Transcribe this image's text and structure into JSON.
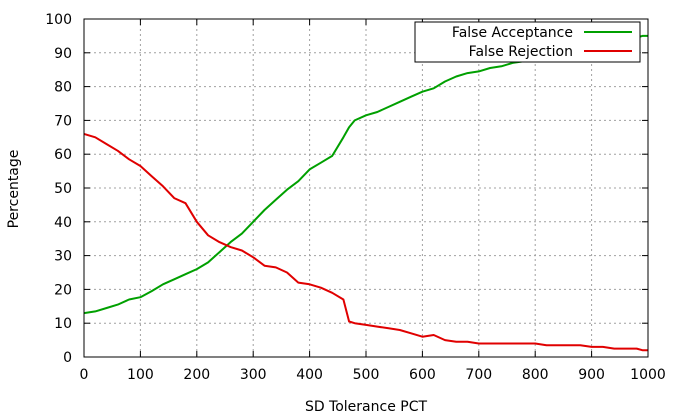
{
  "chart_data": {
    "type": "line",
    "title": "",
    "xlabel": "SD Tolerance PCT",
    "ylabel": "Percentage",
    "xlim": [
      0,
      1000
    ],
    "ylim": [
      0,
      100
    ],
    "x_ticks": [
      0,
      100,
      200,
      300,
      400,
      500,
      600,
      700,
      800,
      900,
      1000
    ],
    "y_ticks": [
      0,
      10,
      20,
      30,
      40,
      50,
      60,
      70,
      80,
      90,
      100
    ],
    "x_tick_labels": [
      "0",
      "100",
      "200",
      "300",
      "400",
      "500",
      "600",
      "700",
      "800",
      "900",
      "1000"
    ],
    "y_tick_labels": [
      "0",
      "10",
      "20",
      "30",
      "40",
      "50",
      "60",
      "70",
      "80",
      "90",
      "100"
    ],
    "grid": true,
    "legend_position": "top-right",
    "series": [
      {
        "name": "False Acceptance",
        "color": "#00a000",
        "x": [
          0,
          20,
          40,
          60,
          80,
          100,
          120,
          140,
          160,
          180,
          200,
          220,
          240,
          260,
          280,
          300,
          320,
          340,
          360,
          380,
          400,
          420,
          440,
          460,
          470,
          480,
          500,
          520,
          540,
          560,
          580,
          600,
          620,
          640,
          660,
          680,
          700,
          720,
          740,
          760,
          780,
          800,
          820,
          840,
          860,
          880,
          900,
          920,
          940,
          960,
          980,
          990,
          1000
        ],
        "y": [
          13,
          13.5,
          14.5,
          15.5,
          17,
          17.7,
          19.5,
          21.5,
          23,
          24.5,
          26,
          28,
          31,
          34,
          36.5,
          40,
          43.5,
          46.5,
          49.5,
          52,
          55.5,
          57.5,
          59.5,
          65,
          68,
          70,
          71.5,
          72.5,
          74,
          75.5,
          77,
          78.5,
          79.5,
          81.5,
          83,
          84,
          84.5,
          85.5,
          86,
          87,
          87.5,
          88,
          88.5,
          89,
          89.5,
          90,
          91,
          92,
          93,
          94,
          94.5,
          95,
          95
        ]
      },
      {
        "name": "False Rejection",
        "color": "#e00000",
        "x": [
          0,
          20,
          40,
          60,
          80,
          100,
          120,
          140,
          160,
          180,
          200,
          220,
          240,
          260,
          280,
          300,
          320,
          340,
          360,
          380,
          400,
          420,
          440,
          460,
          470,
          480,
          500,
          520,
          540,
          560,
          580,
          600,
          620,
          640,
          660,
          680,
          700,
          720,
          740,
          760,
          780,
          800,
          820,
          840,
          860,
          880,
          900,
          920,
          940,
          960,
          980,
          990,
          1000
        ],
        "y": [
          66,
          65,
          63,
          61,
          58.5,
          56.5,
          53.5,
          50.5,
          47,
          45.5,
          40,
          36,
          34,
          32.5,
          31.5,
          29.5,
          27,
          26.5,
          25,
          22,
          21.5,
          20.5,
          19,
          17,
          10.5,
          10,
          9.5,
          9,
          8.5,
          8,
          7,
          6,
          6.5,
          5,
          4.5,
          4.5,
          4,
          4,
          4,
          4,
          4,
          4,
          3.5,
          3.5,
          3.5,
          3.5,
          3,
          3,
          2.5,
          2.5,
          2.5,
          2,
          2
        ]
      }
    ]
  }
}
